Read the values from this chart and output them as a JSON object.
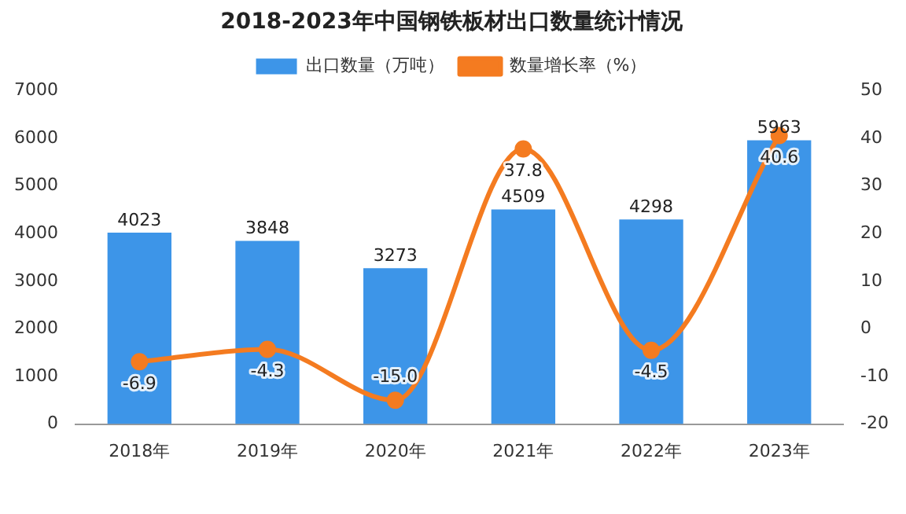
{
  "chart_data": {
    "type": "bar",
    "title": "2018-2023年中国钢铁板材出口数量统计情况",
    "categories": [
      "2018年",
      "2019年",
      "2020年",
      "2021年",
      "2022年",
      "2023年"
    ],
    "series": [
      {
        "name": "出口数量（万吨）",
        "color": "#3d95e8",
        "values": [
          4023,
          3848,
          3273,
          4509,
          4298,
          5963
        ],
        "value_labels": [
          "4023",
          "3848",
          "3273",
          "4509",
          "4298",
          "5963"
        ]
      },
      {
        "name": "数量增长率（%）",
        "type": "line",
        "axis": "y2",
        "color": "#f47b20",
        "values": [
          -6.9,
          -4.3,
          -15.0,
          37.8,
          -4.5,
          40.6
        ],
        "value_labels": [
          "-6.9",
          "-4.3",
          "-15.0",
          "37.8",
          "-4.5",
          "40.6"
        ]
      }
    ],
    "ylim": [
      0,
      7000
    ],
    "yticks": [
      0,
      1000,
      2000,
      3000,
      4000,
      5000,
      6000,
      7000
    ],
    "y2lim": [
      -20,
      50
    ],
    "y2ticks": [
      -20,
      -10,
      0,
      10,
      20,
      30,
      40,
      50
    ],
    "legend": "top",
    "marker": "circle",
    "grid": false
  }
}
